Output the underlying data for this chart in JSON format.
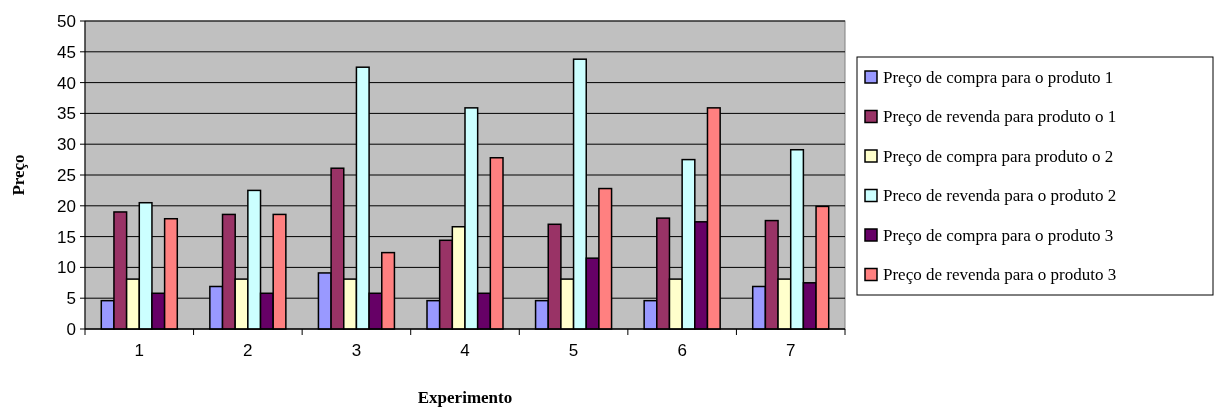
{
  "chart_data": {
    "type": "bar",
    "xlabel": "Experimento",
    "ylabel": "Preço",
    "categories": [
      "1",
      "2",
      "3",
      "4",
      "5",
      "6",
      "7"
    ],
    "series": [
      {
        "name": "Preço de compra para o produto 1",
        "color": "#9999ff",
        "values": [
          4.6,
          6.9,
          9.1,
          4.6,
          4.6,
          4.6,
          6.9
        ]
      },
      {
        "name": "Preço de revenda para produto o 1",
        "color": "#993366",
        "values": [
          19.0,
          18.6,
          26.1,
          14.4,
          17.0,
          18.0,
          17.6
        ]
      },
      {
        "name": "Preço de compra para produto o 2",
        "color": "#ffffcc",
        "values": [
          8.1,
          8.1,
          8.1,
          16.6,
          8.1,
          8.1,
          8.1
        ]
      },
      {
        "name": "Preco de revenda para o produto 2",
        "color": "#ccffff",
        "values": [
          20.5,
          22.5,
          42.5,
          35.9,
          43.8,
          27.5,
          29.1
        ]
      },
      {
        "name": "Preço de compra para o produto 3",
        "color": "#660066",
        "values": [
          5.8,
          5.8,
          5.8,
          5.8,
          11.5,
          17.4,
          7.5
        ]
      },
      {
        "name": "Preço de revenda para o produto 3",
        "color": "#ff8080",
        "values": [
          17.9,
          18.6,
          12.4,
          27.8,
          22.8,
          35.9,
          19.9
        ]
      }
    ],
    "ylim": [
      0,
      50
    ],
    "yticks": [
      0,
      5,
      10,
      15,
      20,
      25,
      30,
      35,
      40,
      45,
      50
    ],
    "grid": "y",
    "legend": "right"
  }
}
